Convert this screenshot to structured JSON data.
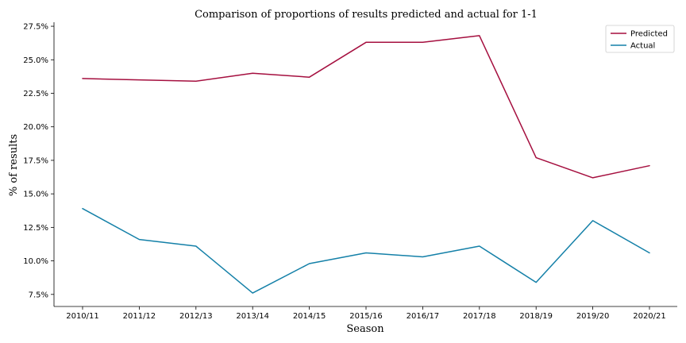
{
  "chart_data": {
    "type": "line",
    "title": "Comparison of proportions of results predicted and actual for 1-1",
    "xlabel": "Season",
    "ylabel": "% of results",
    "categories": [
      "2010/11",
      "2011/12",
      "2012/13",
      "2013/14",
      "2014/15",
      "2015/16",
      "2016/17",
      "2017/18",
      "2018/19",
      "2019/20",
      "2020/21"
    ],
    "y_ticks": [
      7.5,
      10.0,
      12.5,
      15.0,
      17.5,
      20.0,
      22.5,
      25.0,
      27.5
    ],
    "y_tick_labels": [
      "7.5%",
      "10.0%",
      "12.5%",
      "15.0%",
      "17.5%",
      "20.0%",
      "22.5%",
      "25.0%",
      "27.5%"
    ],
    "ylim": [
      6.6,
      27.8
    ],
    "grid": false,
    "legend_position": "top-right",
    "series": [
      {
        "name": "Predicted",
        "color": "#a50f3f",
        "values": [
          23.6,
          23.5,
          23.4,
          24.0,
          23.7,
          26.3,
          26.3,
          26.8,
          17.7,
          16.2,
          17.1
        ]
      },
      {
        "name": "Actual",
        "color": "#1480a8",
        "values": [
          13.9,
          11.6,
          11.1,
          7.6,
          9.8,
          10.6,
          10.3,
          11.1,
          8.4,
          13.0,
          10.6
        ]
      }
    ]
  }
}
